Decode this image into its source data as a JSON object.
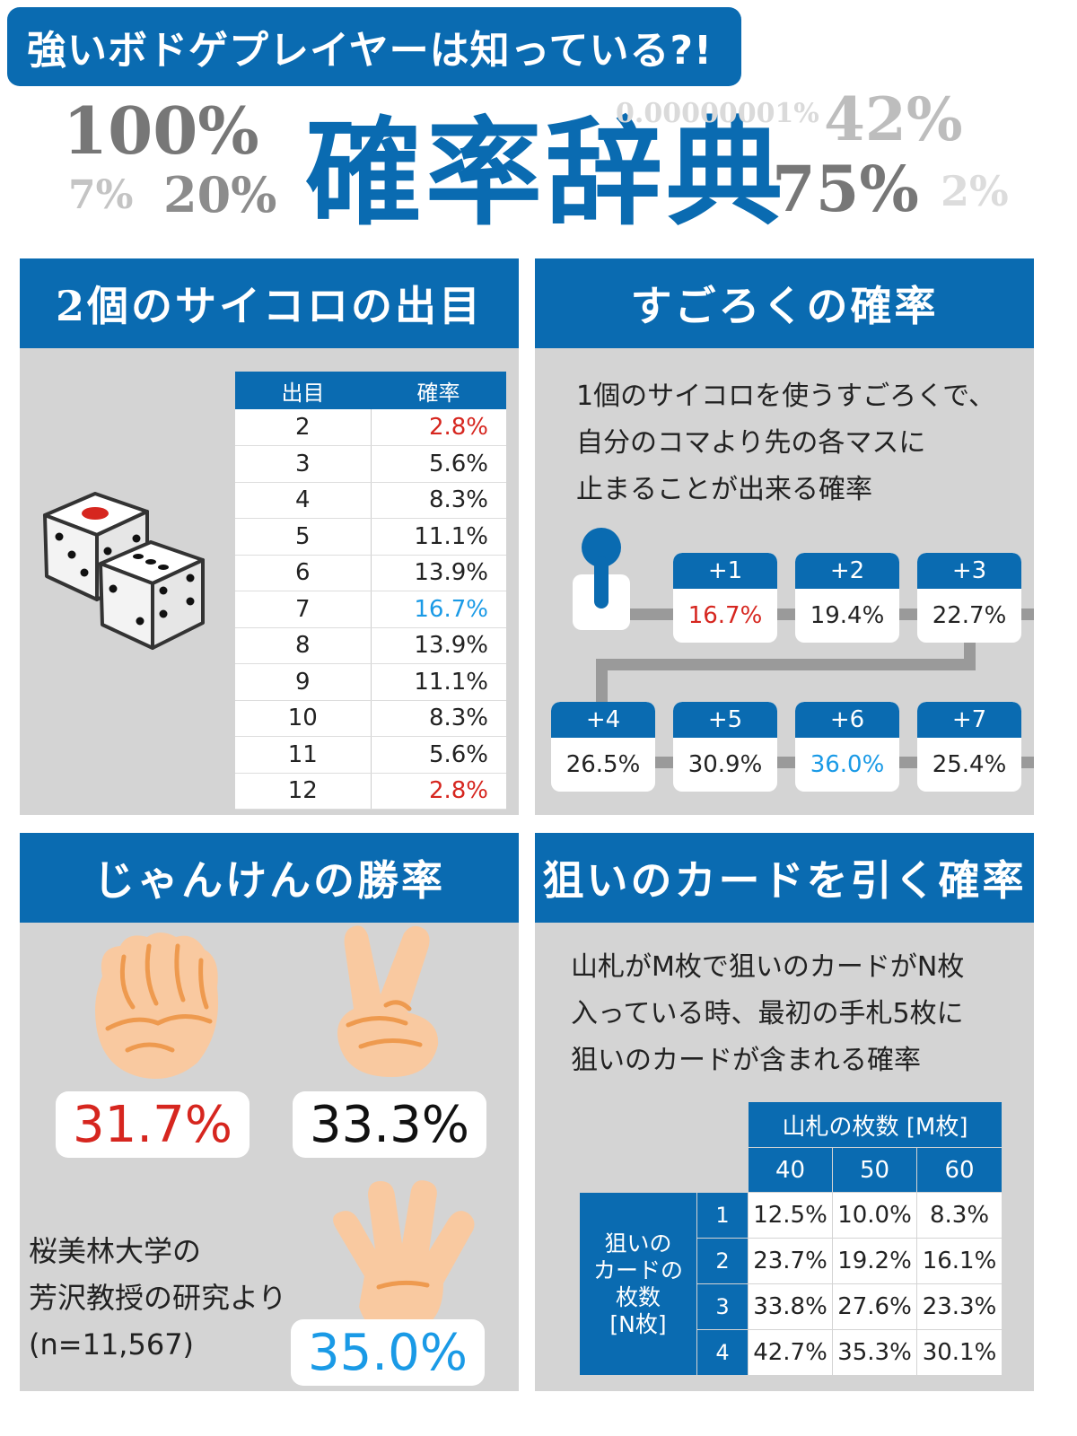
{
  "header": {
    "subtitle": "強いボドゲプレイヤーは知っている?!",
    "title": "確率辞典",
    "deco_numbers": [
      "100%",
      "7%",
      "20%",
      "0.00000001%",
      "42%",
      "75%",
      "2%"
    ]
  },
  "dice": {
    "title": "2個のサイコロの出目",
    "col_roll": "出目",
    "col_prob": "確率",
    "rows": [
      {
        "roll": "2",
        "prob": "2.8%"
      },
      {
        "roll": "3",
        "prob": "5.6%"
      },
      {
        "roll": "4",
        "prob": "8.3%"
      },
      {
        "roll": "5",
        "prob": "11.1%"
      },
      {
        "roll": "6",
        "prob": "13.9%"
      },
      {
        "roll": "7",
        "prob": "16.7%"
      },
      {
        "roll": "8",
        "prob": "13.9%"
      },
      {
        "roll": "9",
        "prob": "11.1%"
      },
      {
        "roll": "10",
        "prob": "8.3%"
      },
      {
        "roll": "11",
        "prob": "5.6%"
      },
      {
        "roll": "12",
        "prob": "2.8%"
      }
    ],
    "colors": {
      "low": "#d6261f",
      "peak": "#1a9ae6"
    }
  },
  "sugoroku": {
    "title": "すごろくの確率",
    "desc": [
      "1個のサイコロを使うすごろくで、",
      "自分のコマより先の各マスに",
      "止まることが出来る確率"
    ],
    "squares": [
      {
        "label": "+1",
        "prob": "16.7%"
      },
      {
        "label": "+2",
        "prob": "19.4%"
      },
      {
        "label": "+3",
        "prob": "22.7%"
      },
      {
        "label": "+4",
        "prob": "26.5%"
      },
      {
        "label": "+5",
        "prob": "30.9%"
      },
      {
        "label": "+6",
        "prob": "36.0%"
      },
      {
        "label": "+7",
        "prob": "25.4%"
      }
    ]
  },
  "janken": {
    "title": "じゃんけんの勝率",
    "rock": "31.7%",
    "scissors": "33.3%",
    "paper": "35.0%",
    "credit": [
      "桜美林大学の",
      "芳沢教授の研究より",
      "(n=11,567)"
    ]
  },
  "cards": {
    "title": "狙いのカードを引く確率",
    "desc": [
      "山札がM枚で狙いのカードがN枚",
      "入っている時、最初の手札5枚に",
      "狙いのカードが含まれる確率"
    ],
    "col_header": "山札の枚数 [M枚]",
    "cols": [
      "40",
      "50",
      "60"
    ],
    "row_header": [
      "狙いの",
      "カードの",
      "枚数",
      "[N枚]"
    ],
    "rows": [
      {
        "n": "1",
        "vals": [
          "12.5%",
          "10.0%",
          "8.3%"
        ]
      },
      {
        "n": "2",
        "vals": [
          "23.7%",
          "19.2%",
          "16.1%"
        ]
      },
      {
        "n": "3",
        "vals": [
          "33.8%",
          "27.6%",
          "23.3%"
        ]
      },
      {
        "n": "4",
        "vals": [
          "42.7%",
          "35.3%",
          "30.1%"
        ]
      }
    ]
  }
}
